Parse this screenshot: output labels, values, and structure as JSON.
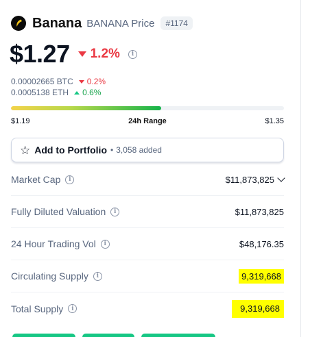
{
  "coin": {
    "name": "Banana",
    "subtitle": "BANANA Price",
    "rank": "#1174",
    "logo_icon": "banana-logo-icon",
    "logo_color": "#f5c518"
  },
  "price": {
    "value": "$1.27",
    "change": "1.2%",
    "change_direction": "down"
  },
  "btc_price": {
    "value": "0.00002665 BTC",
    "change": "0.2%",
    "direction": "down"
  },
  "eth_price": {
    "value": "0.0005138 ETH",
    "change": "0.6%",
    "direction": "up"
  },
  "range": {
    "low": "$1.19",
    "label": "24h Range",
    "high": "$1.35",
    "position_fraction": 0.55
  },
  "portfolio": {
    "label": "Add to Portfolio",
    "separator": "•",
    "count": "3,058 added"
  },
  "stats": [
    {
      "label": "Market Cap",
      "value": "$11,873,825",
      "dropdown": true,
      "highlight": false
    },
    {
      "label": "Fully Diluted Valuation",
      "value": "$11,873,825",
      "dropdown": false,
      "highlight": false
    },
    {
      "label": "24 Hour Trading Vol",
      "value": "$48,176.35",
      "dropdown": false,
      "highlight": false
    },
    {
      "label": "Circulating Supply",
      "value": "9,319,668",
      "dropdown": false,
      "highlight": true
    },
    {
      "label": "Total Supply",
      "value": "9,319,668",
      "dropdown": false,
      "highlight": true
    }
  ],
  "colors": {
    "negative": "#ea3943",
    "positive": "#16c784",
    "highlight": "#ffff00"
  }
}
